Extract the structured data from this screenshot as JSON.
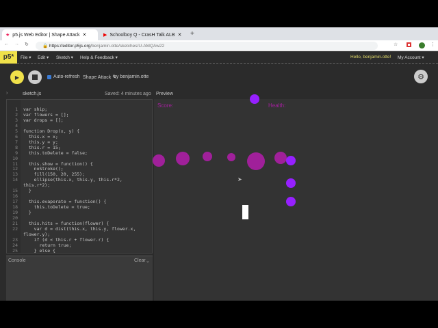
{
  "browser": {
    "tabs": [
      {
        "title": "p5.js Web Editor | Shape Attack",
        "icon": "p5-star-icon"
      },
      {
        "title": "Schoolboy Q - CrasH Talk ALB",
        "icon": "youtube-icon"
      }
    ],
    "new_tab": "+",
    "url_host": "https://editor.p5js.org",
    "url_path": "/benjamin.otte/sketches/U-AMQAw22"
  },
  "nav": {
    "logo": "p5*",
    "menus": [
      "File ▾",
      "Edit ▾",
      "Sketch ▾",
      "Help & Feedback ▾"
    ],
    "greeting": "Hello, benjamin.otte!",
    "account": "My Account ▾"
  },
  "toolbar": {
    "auto_refresh": "Auto-refresh",
    "auto_refresh_checked": true,
    "sketch_name": "Shape Attack ✎",
    "by": "by benjamin.otte"
  },
  "editor": {
    "filename": "sketch.js",
    "saved": "Saved: 4 minutes ago",
    "lines": [
      [
        "1",
        "var ship;"
      ],
      [
        "2",
        "var flowers = [];"
      ],
      [
        "3",
        "var drops = [];"
      ],
      [
        "4",
        ""
      ],
      [
        "5",
        "function Drop(x, y) {"
      ],
      [
        "6",
        "  this.x = x;"
      ],
      [
        "7",
        "  this.y = y;"
      ],
      [
        "8",
        "  this.r = 15;"
      ],
      [
        "9",
        "  this.toDelete = false;"
      ],
      [
        "10",
        ""
      ],
      [
        "11",
        "  this.show = function() {"
      ],
      [
        "12",
        "    noStroke();"
      ],
      [
        "13",
        "    fill(150, 20, 255);"
      ],
      [
        "14",
        "    ellipse(this.x, this.y, this.r*2,"
      ],
      [
        "",
        "this.r*2);"
      ],
      [
        "15",
        "  }"
      ],
      [
        "16",
        ""
      ],
      [
        "17",
        "  this.evaporate = function() {"
      ],
      [
        "18",
        "    this.toDelete = true;"
      ],
      [
        "19",
        "  }"
      ],
      [
        "20",
        ""
      ],
      [
        "21",
        "  this.hits = function(flower) {"
      ],
      [
        "22",
        "    var d = dist(this.x, this.y, flower.x,"
      ],
      [
        "",
        "flower.y);"
      ],
      [
        "23",
        "    if (d < this.r + flower.r) {"
      ],
      [
        "24",
        "      return true;"
      ],
      [
        "25",
        "    } else {"
      ]
    ]
  },
  "console": {
    "label": "Console",
    "clear": "Clear"
  },
  "preview": {
    "label": "Preview",
    "score": "Score:",
    "health": "Health:",
    "flower_color": "#a0209a",
    "drop_color": "#9620ff",
    "text_color": "#a0209a"
  }
}
